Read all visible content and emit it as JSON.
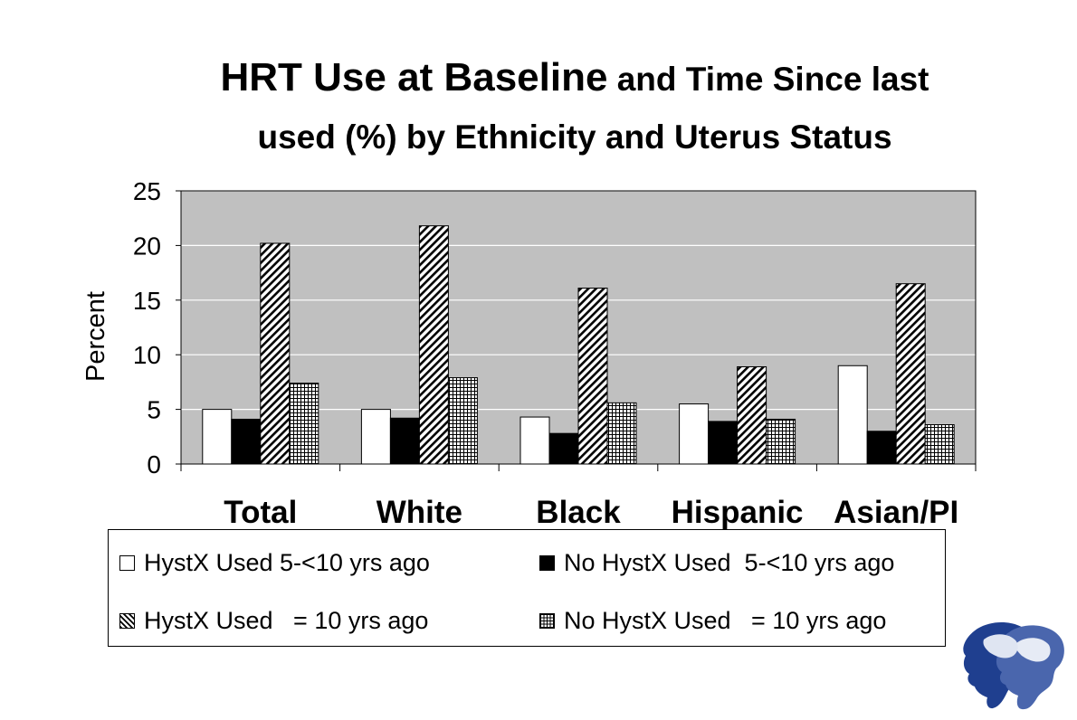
{
  "title": {
    "part1": "HRT Use at Baseline",
    "part2": " and Time Since last",
    "line2": "used (%) by Ethnicity and Uterus Status"
  },
  "chart_data": {
    "type": "bar",
    "categories": [
      "Total",
      "White",
      "Black",
      "Hispanic",
      "Asian/PI"
    ],
    "series": [
      {
        "name": "HystX Used 5-<10 yrs ago",
        "values": [
          5.0,
          5.0,
          4.3,
          5.5,
          9.0
        ],
        "fill": "white"
      },
      {
        "name": "No HystX Used  5-<10 yrs ago",
        "values": [
          4.1,
          4.2,
          2.8,
          3.9,
          3.0
        ],
        "fill": "black"
      },
      {
        "name": "HystX Used   = 10 yrs ago",
        "values": [
          20.2,
          21.8,
          16.1,
          8.9,
          16.5
        ],
        "fill": "diagonal-hatch"
      },
      {
        "name": "No HystX Used   = 10 yrs ago",
        "values": [
          7.4,
          7.9,
          5.6,
          4.1,
          3.6
        ],
        "fill": "grid-hatch"
      }
    ],
    "ylabel": "Percent",
    "ylim": [
      0,
      25
    ],
    "yticks": [
      0,
      5,
      10,
      15,
      20,
      25
    ],
    "grid": true,
    "plot_background": "#c0c0c0",
    "legend_position": "bottom"
  }
}
